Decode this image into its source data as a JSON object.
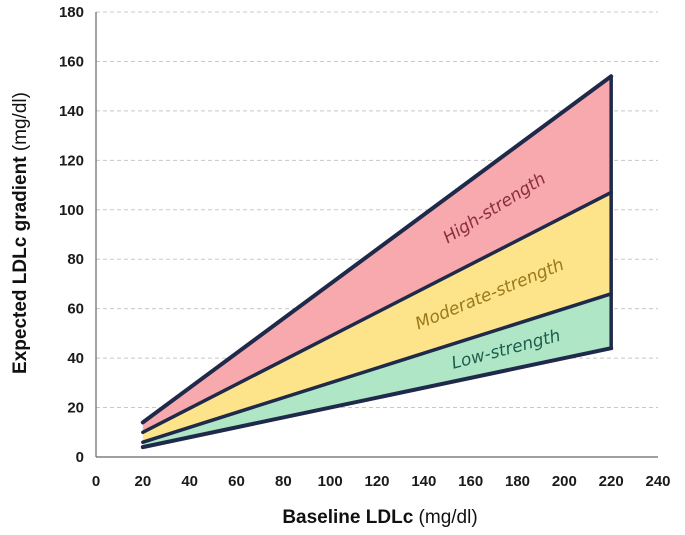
{
  "chart_data": {
    "type": "area",
    "title": "",
    "xlabel": {
      "bold": "Baseline LDLc",
      "unit": " (mg/dl)"
    },
    "ylabel": {
      "bold": "Expected LDLc gradient",
      "unit": " (mg/dl)"
    },
    "xlim": [
      0,
      240
    ],
    "ylim": [
      0,
      180
    ],
    "xticks": [
      0,
      20,
      40,
      60,
      80,
      100,
      120,
      140,
      160,
      180,
      200,
      220,
      240
    ],
    "yticks": [
      0,
      20,
      40,
      60,
      80,
      100,
      120,
      140,
      160,
      180
    ],
    "grid": true,
    "x": [
      20,
      220
    ],
    "boundaries": [
      {
        "name": "lower",
        "values": [
          4,
          44
        ]
      },
      {
        "name": "low-moderate",
        "values": [
          6,
          66
        ]
      },
      {
        "name": "moderate-high",
        "values": [
          10,
          107
        ]
      },
      {
        "name": "upper",
        "values": [
          14,
          154
        ]
      }
    ],
    "bands": [
      {
        "name": "Low-strength",
        "lower": "lower",
        "upper": "low-moderate",
        "color": "#aee6c6",
        "label_color": "#1f5e4f"
      },
      {
        "name": "Moderate-strength",
        "lower": "low-moderate",
        "upper": "moderate-high",
        "color": "#fde38a",
        "label_color": "#9a7a1c"
      },
      {
        "name": "High-strength",
        "lower": "moderate-high",
        "upper": "upper",
        "color": "#f7a9ad",
        "label_color": "#8c2f3a"
      }
    ],
    "line_color": "#1f2a4a"
  }
}
